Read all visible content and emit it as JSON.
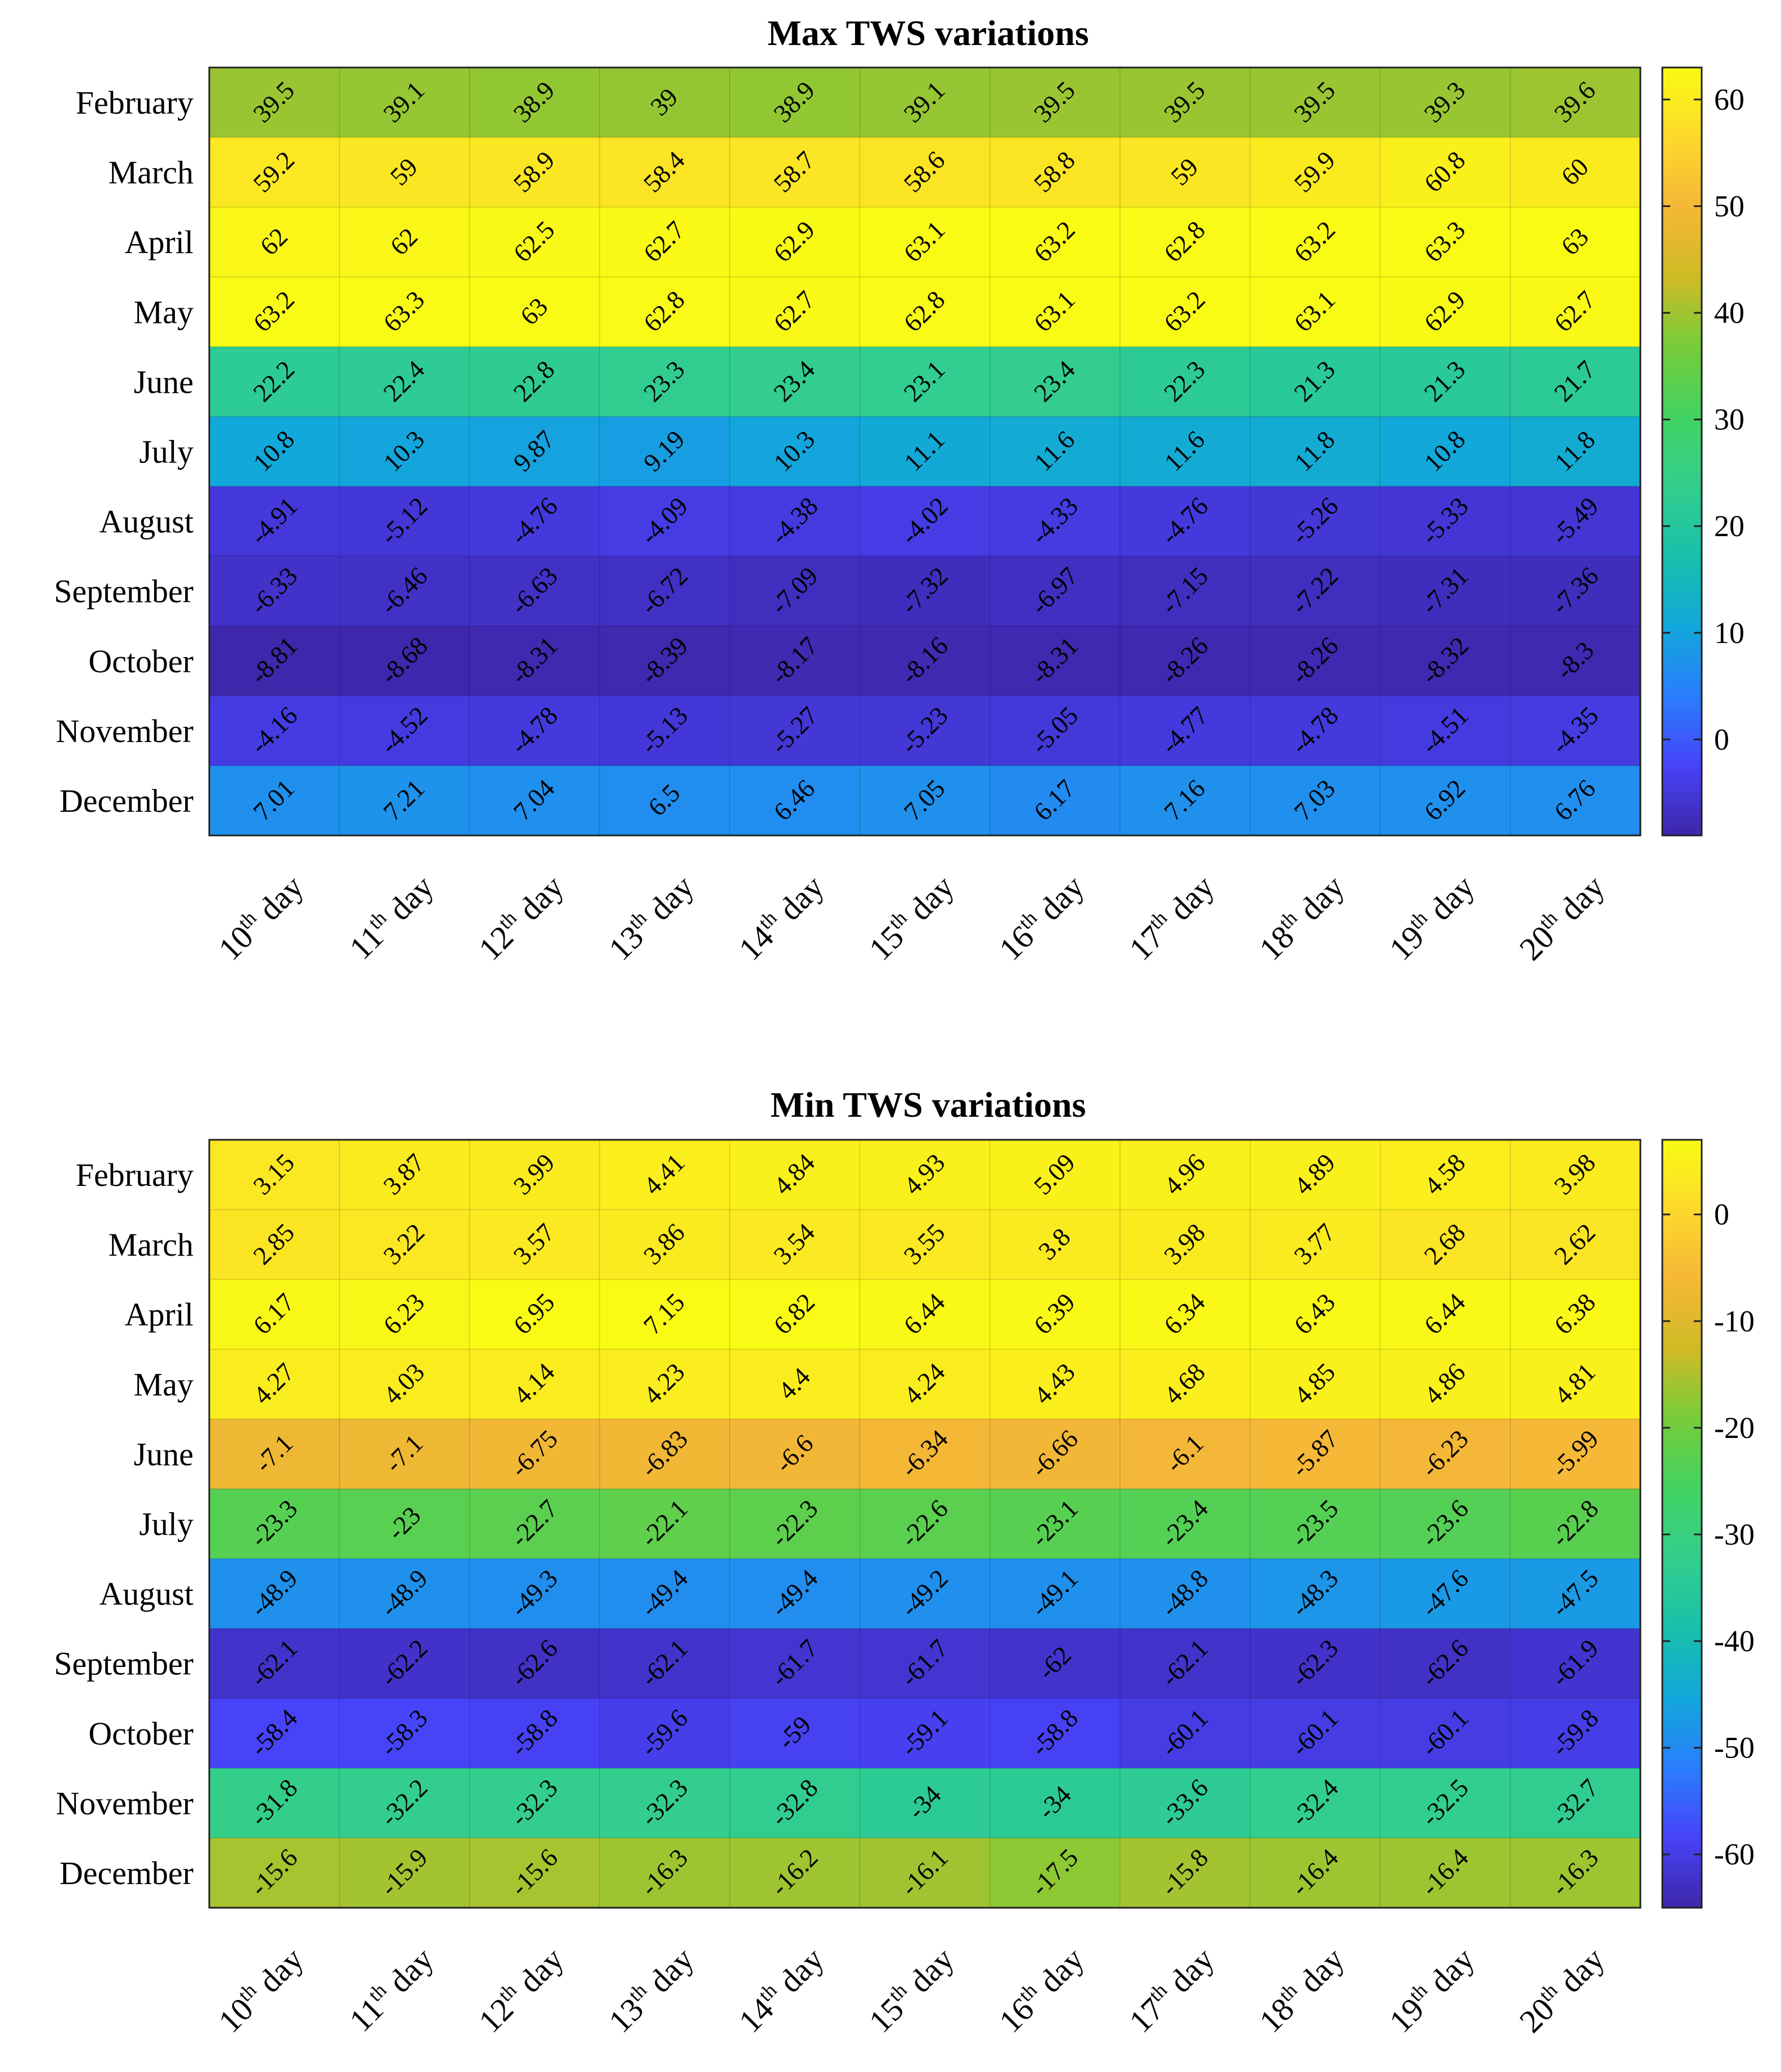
{
  "colormap": [
    "#3e26a8",
    "#4743f8",
    "#2a7efc",
    "#12a7da",
    "#19c0aa",
    "#33ce8e",
    "#42d262",
    "#76cc3a",
    "#cfbb26",
    "#f5b737",
    "#fcd92c",
    "#f9fb14"
  ],
  "chart_data": [
    {
      "type": "heatmap",
      "title": "Max TWS variations",
      "rows": [
        "February",
        "March",
        "April",
        "May",
        "June",
        "July",
        "August",
        "September",
        "October",
        "November",
        "December"
      ],
      "columns": [
        {
          "num": "10",
          "sup": "th",
          "word": "day"
        },
        {
          "num": "11",
          "sup": "th",
          "word": "day"
        },
        {
          "num": "12",
          "sup": "th",
          "word": "day"
        },
        {
          "num": "13",
          "sup": "th",
          "word": "day"
        },
        {
          "num": "14",
          "sup": "th",
          "word": "day"
        },
        {
          "num": "15",
          "sup": "th",
          "word": "day"
        },
        {
          "num": "16",
          "sup": "th",
          "word": "day"
        },
        {
          "num": "17",
          "sup": "th",
          "word": "day"
        },
        {
          "num": "18",
          "sup": "th",
          "word": "day"
        },
        {
          "num": "19",
          "sup": "th",
          "word": "day"
        },
        {
          "num": "20",
          "sup": "th",
          "word": "day"
        }
      ],
      "values": [
        [
          39.5,
          39.1,
          38.9,
          39,
          38.9,
          39.1,
          39.5,
          39.5,
          39.5,
          39.3,
          39.6
        ],
        [
          59.2,
          59,
          58.9,
          58.4,
          58.7,
          58.6,
          58.8,
          59,
          59.9,
          60.8,
          60
        ],
        [
          62,
          62,
          62.5,
          62.7,
          62.9,
          63.1,
          63.2,
          62.8,
          63.2,
          63.3,
          63
        ],
        [
          63.2,
          63.3,
          63,
          62.8,
          62.7,
          62.8,
          63.1,
          63.2,
          63.1,
          62.9,
          62.7
        ],
        [
          22.2,
          22.4,
          22.8,
          23.3,
          23.4,
          23.1,
          23.4,
          22.3,
          21.3,
          21.3,
          21.7
        ],
        [
          10.8,
          10.3,
          9.87,
          9.19,
          10.3,
          11.1,
          11.6,
          11.6,
          11.8,
          10.8,
          11.8
        ],
        [
          -4.91,
          -5.12,
          -4.76,
          -4.09,
          -4.38,
          -4.02,
          -4.33,
          -4.76,
          -5.26,
          -5.33,
          -5.49
        ],
        [
          -6.33,
          -6.46,
          -6.63,
          -6.72,
          -7.09,
          -7.32,
          -6.97,
          -7.15,
          -7.22,
          -7.31,
          -7.36
        ],
        [
          -8.81,
          -8.68,
          -8.31,
          -8.39,
          -8.17,
          -8.16,
          -8.31,
          -8.26,
          -8.26,
          -8.32,
          -8.3
        ],
        [
          -4.16,
          -4.52,
          -4.78,
          -5.13,
          -5.27,
          -5.23,
          -5.05,
          -4.77,
          -4.78,
          -4.51,
          -4.35
        ],
        [
          7.01,
          7.21,
          7.04,
          6.5,
          6.46,
          7.05,
          6.17,
          7.16,
          7.03,
          6.92,
          6.76
        ]
      ],
      "value_labels": [
        [
          "39.5",
          "39.1",
          "38.9",
          "39",
          "38.9",
          "39.1",
          "39.5",
          "39.5",
          "39.5",
          "39.3",
          "39.6"
        ],
        [
          "59.2",
          "59",
          "58.9",
          "58.4",
          "58.7",
          "58.6",
          "58.8",
          "59",
          "59.9",
          "60.8",
          "60"
        ],
        [
          "62",
          "62",
          "62.5",
          "62.7",
          "62.9",
          "63.1",
          "63.2",
          "62.8",
          "63.2",
          "63.3",
          "63"
        ],
        [
          "63.2",
          "63.3",
          "63",
          "62.8",
          "62.7",
          "62.8",
          "63.1",
          "63.2",
          "63.1",
          "62.9",
          "62.7"
        ],
        [
          "22.2",
          "22.4",
          "22.8",
          "23.3",
          "23.4",
          "23.1",
          "23.4",
          "22.3",
          "21.3",
          "21.3",
          "21.7"
        ],
        [
          "10.8",
          "10.3",
          "9.87",
          "9.19",
          "10.3",
          "11.1",
          "11.6",
          "11.6",
          "11.8",
          "10.8",
          "11.8"
        ],
        [
          "-4.91",
          "-5.12",
          "-4.76",
          "-4.09",
          "-4.38",
          "-4.02",
          "-4.33",
          "-4.76",
          "-5.26",
          "-5.33",
          "-5.49"
        ],
        [
          "-6.33",
          "-6.46",
          "-6.63",
          "-6.72",
          "-7.09",
          "-7.32",
          "-6.97",
          "-7.15",
          "-7.22",
          "-7.31",
          "-7.36"
        ],
        [
          "-8.81",
          "-8.68",
          "-8.31",
          "-8.39",
          "-8.17",
          "-8.16",
          "-8.31",
          "-8.26",
          "-8.26",
          "-8.32",
          "-8.3"
        ],
        [
          "-4.16",
          "-4.52",
          "-4.78",
          "-5.13",
          "-5.27",
          "-5.23",
          "-5.05",
          "-4.77",
          "-4.78",
          "-4.51",
          "-4.35"
        ],
        [
          "7.01",
          "7.21",
          "7.04",
          "6.5",
          "6.46",
          "7.05",
          "6.17",
          "7.16",
          "7.03",
          "6.92",
          "6.76"
        ]
      ],
      "colorbar": {
        "range": [
          -9,
          63
        ],
        "ticks": [
          0,
          10,
          20,
          30,
          40,
          50,
          60
        ],
        "tick_labels": [
          "0",
          "10",
          "20",
          "30",
          "40",
          "50",
          "60"
        ]
      }
    },
    {
      "type": "heatmap",
      "title": "Min TWS variations",
      "rows": [
        "February",
        "March",
        "April",
        "May",
        "June",
        "July",
        "August",
        "September",
        "October",
        "November",
        "December"
      ],
      "columns": [
        {
          "num": "10",
          "sup": "th",
          "word": "day"
        },
        {
          "num": "11",
          "sup": "th",
          "word": "day"
        },
        {
          "num": "12",
          "sup": "th",
          "word": "day"
        },
        {
          "num": "13",
          "sup": "th",
          "word": "day"
        },
        {
          "num": "14",
          "sup": "th",
          "word": "day"
        },
        {
          "num": "15",
          "sup": "th",
          "word": "day"
        },
        {
          "num": "16",
          "sup": "th",
          "word": "day"
        },
        {
          "num": "17",
          "sup": "th",
          "word": "day"
        },
        {
          "num": "18",
          "sup": "th",
          "word": "day"
        },
        {
          "num": "19",
          "sup": "th",
          "word": "day"
        },
        {
          "num": "20",
          "sup": "th",
          "word": "day"
        }
      ],
      "values": [
        [
          3.15,
          3.87,
          3.99,
          4.41,
          4.84,
          4.93,
          5.09,
          4.96,
          4.89,
          4.58,
          3.98
        ],
        [
          2.85,
          3.22,
          3.57,
          3.86,
          3.54,
          3.55,
          3.8,
          3.98,
          3.77,
          2.68,
          2.62
        ],
        [
          6.17,
          6.23,
          6.95,
          7.15,
          6.82,
          6.44,
          6.39,
          6.34,
          6.43,
          6.44,
          6.38
        ],
        [
          4.27,
          4.03,
          4.14,
          4.23,
          4.4,
          4.24,
          4.43,
          4.68,
          4.85,
          4.86,
          4.81
        ],
        [
          -7.1,
          -7.1,
          -6.75,
          -6.83,
          -6.6,
          -6.34,
          -6.66,
          -6.1,
          -5.87,
          -6.23,
          -5.99
        ],
        [
          -23.3,
          -23,
          -22.7,
          -22.1,
          -22.3,
          -22.6,
          -23.1,
          -23.4,
          -23.5,
          -23.6,
          -22.8
        ],
        [
          -48.9,
          -48.9,
          -49.3,
          -49.4,
          -49.4,
          -49.2,
          -49.1,
          -48.8,
          -48.3,
          -47.6,
          -47.5
        ],
        [
          -62.1,
          -62.2,
          -62.6,
          -62.1,
          -61.7,
          -61.7,
          -62,
          -62.1,
          -62.3,
          -62.6,
          -61.9
        ],
        [
          -58.4,
          -58.3,
          -58.8,
          -59.6,
          -59,
          -59.1,
          -58.8,
          -60.1,
          -60.1,
          -60.1,
          -59.8
        ],
        [
          -31.8,
          -32.2,
          -32.3,
          -32.3,
          -32.8,
          -34,
          -34,
          -33.6,
          -32.4,
          -32.5,
          -32.7
        ],
        [
          -15.6,
          -15.9,
          -15.6,
          -16.3,
          -16.2,
          -16.1,
          -17.5,
          -15.8,
          -16.4,
          -16.4,
          -16.3
        ]
      ],
      "value_labels": [
        [
          "3.15",
          "3.87",
          "3.99",
          "4.41",
          "4.84",
          "4.93",
          "5.09",
          "4.96",
          "4.89",
          "4.58",
          "3.98"
        ],
        [
          "2.85",
          "3.22",
          "3.57",
          "3.86",
          "3.54",
          "3.55",
          "3.8",
          "3.98",
          "3.77",
          "2.68",
          "2.62"
        ],
        [
          "6.17",
          "6.23",
          "6.95",
          "7.15",
          "6.82",
          "6.44",
          "6.39",
          "6.34",
          "6.43",
          "6.44",
          "6.38"
        ],
        [
          "4.27",
          "4.03",
          "4.14",
          "4.23",
          "4.4",
          "4.24",
          "4.43",
          "4.68",
          "4.85",
          "4.86",
          "4.81"
        ],
        [
          "-7.1",
          "-7.1",
          "-6.75",
          "-6.83",
          "-6.6",
          "-6.34",
          "-6.66",
          "-6.1",
          "-5.87",
          "-6.23",
          "-5.99"
        ],
        [
          "-23.3",
          "-23",
          "-22.7",
          "-22.1",
          "-22.3",
          "-22.6",
          "-23.1",
          "-23.4",
          "-23.5",
          "-23.6",
          "-22.8"
        ],
        [
          "-48.9",
          "-48.9",
          "-49.3",
          "-49.4",
          "-49.4",
          "-49.2",
          "-49.1",
          "-48.8",
          "-48.3",
          "-47.6",
          "-47.5"
        ],
        [
          "-62.1",
          "-62.2",
          "-62.6",
          "-62.1",
          "-61.7",
          "-61.7",
          "-62",
          "-62.1",
          "-62.3",
          "-62.6",
          "-61.9"
        ],
        [
          "-58.4",
          "-58.3",
          "-58.8",
          "-59.6",
          "-59",
          "-59.1",
          "-58.8",
          "-60.1",
          "-60.1",
          "-60.1",
          "-59.8"
        ],
        [
          "-31.8",
          "-32.2",
          "-32.3",
          "-32.3",
          "-32.8",
          "-34",
          "-34",
          "-33.6",
          "-32.4",
          "-32.5",
          "-32.7"
        ],
        [
          "-15.6",
          "-15.9",
          "-15.6",
          "-16.3",
          "-16.2",
          "-16.1",
          "-17.5",
          "-15.8",
          "-16.4",
          "-16.4",
          "-16.3"
        ]
      ],
      "colorbar": {
        "range": [
          -65,
          7
        ],
        "ticks": [
          -60,
          -50,
          -40,
          -30,
          -20,
          -10,
          0
        ],
        "tick_labels": [
          "-60",
          "-50",
          "-40",
          "-30",
          "-20",
          "-10",
          "0"
        ]
      }
    }
  ]
}
